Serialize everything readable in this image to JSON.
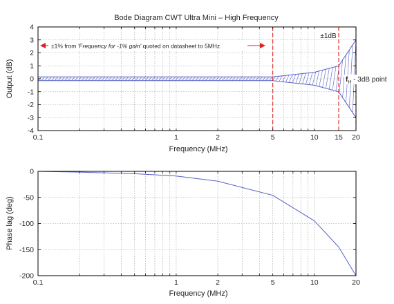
{
  "chart_data": [
    {
      "type": "line",
      "title": "Bode Diagram CWT Ultra Mini – High Frequency",
      "xlabel": "Frequency (MHz)",
      "ylabel": "Output (dB)",
      "xscale": "log",
      "xlim": [
        0.1,
        20
      ],
      "ylim": [
        -4,
        4
      ],
      "xticks": [
        0.1,
        1,
        2,
        5,
        10,
        15,
        20
      ],
      "xtick_labels": [
        "0.1",
        "1",
        "2",
        "5",
        "10",
        "15",
        "20"
      ],
      "yticks": [
        -4,
        -3,
        -2,
        -1,
        0,
        1,
        2,
        3,
        4
      ],
      "ytick_labels": [
        "-4",
        "-3",
        "-2",
        "-1",
        "0",
        "1",
        "2",
        "3",
        "4"
      ],
      "grid": true,
      "series": [
        {
          "x": [
            0.1,
            0.2,
            0.5,
            1,
            2,
            5,
            10,
            15,
            20
          ],
          "y": [
            0.15,
            0.15,
            0.15,
            0.15,
            0.15,
            0.15,
            0.5,
            1.0,
            3.0
          ]
        },
        {
          "x": [
            0.1,
            0.2,
            0.5,
            1,
            2,
            5,
            10,
            15,
            20
          ],
          "y": [
            -0.15,
            -0.15,
            -0.15,
            -0.15,
            -0.15,
            -0.15,
            -0.5,
            -1.0,
            -3.0
          ]
        }
      ],
      "markers": {
        "vertical_lines": [
          5,
          15,
          20
        ],
        "color": "#e02020"
      },
      "annotations": {
        "range_text_prefix": "±1% from ",
        "range_text_italic": "'Frequency for -1% gain'",
        "range_text_suffix": " quoted on datasheet to 5MHz",
        "pm1db": "±1dB",
        "fh_main": "f",
        "fh_sub": "H",
        "fh_rest": " - 3dB point"
      },
      "colors": {
        "line": "#5560c8",
        "hatch": "#5560c8",
        "marker": "#e02020"
      }
    },
    {
      "type": "line",
      "title": "",
      "xlabel": "Frequency (MHz)",
      "ylabel": "Phase lag (deg)",
      "xscale": "log",
      "xlim": [
        0.1,
        20
      ],
      "ylim": [
        -200,
        0
      ],
      "xticks": [
        0.1,
        1,
        2,
        5,
        10,
        20
      ],
      "xtick_labels": [
        "0.1",
        "1",
        "2",
        "5",
        "10",
        "20"
      ],
      "yticks": [
        -200,
        -150,
        -100,
        -50,
        0
      ],
      "ytick_labels": [
        "-200",
        "-150",
        "-100",
        "-50",
        "0"
      ],
      "grid": true,
      "series": [
        {
          "x": [
            0.1,
            0.2,
            0.5,
            1,
            2,
            5,
            10,
            15,
            20
          ],
          "y": [
            0,
            -1.5,
            -4.5,
            -9,
            -19,
            -46,
            -95,
            -145,
            -200
          ]
        }
      ],
      "colors": {
        "line": "#5560c8"
      }
    }
  ]
}
